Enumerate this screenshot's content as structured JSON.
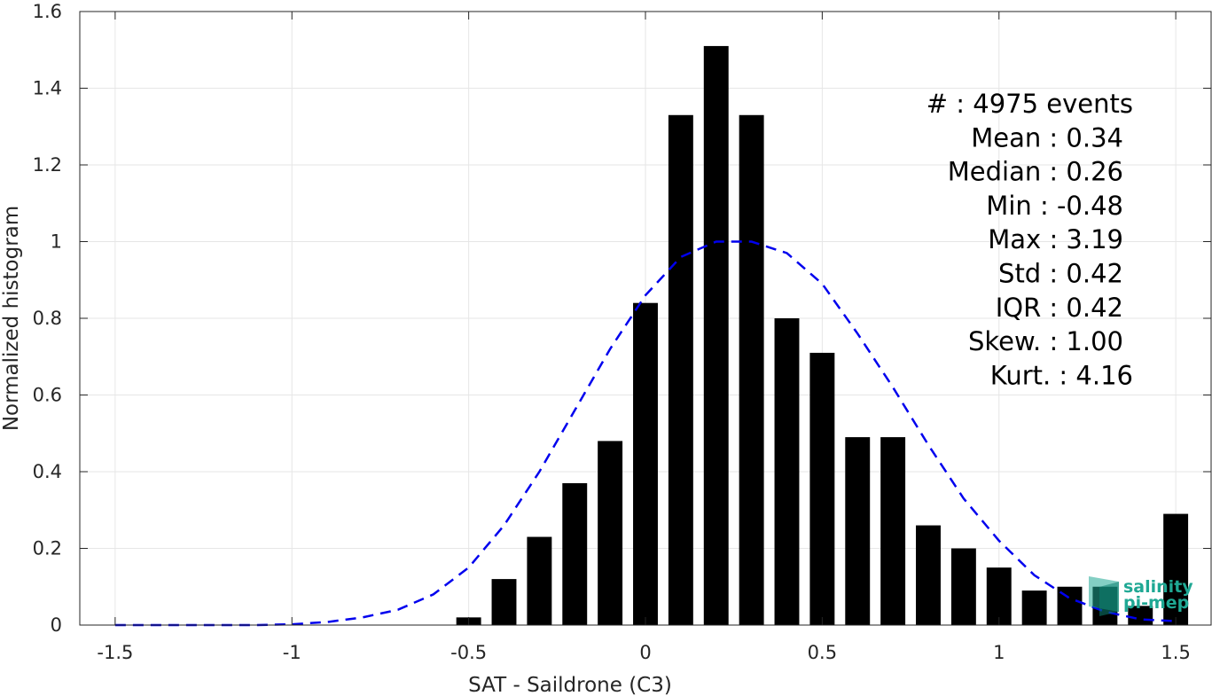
{
  "chart_data": {
    "type": "bar",
    "xlabel": "SAT - Saildrone (C3)",
    "ylabel": "Normalized histogram",
    "xlim": [
      -1.6,
      1.6
    ],
    "ylim": [
      0,
      1.6
    ],
    "grid": true,
    "x_ticks": [
      -1.5,
      -1,
      -0.5,
      0,
      0.5,
      1,
      1.5
    ],
    "x_tick_labels": [
      "-1.5",
      "-1",
      "-0.5",
      "0",
      "0.5",
      "1",
      "1.5"
    ],
    "y_ticks": [
      0,
      0.2,
      0.4,
      0.6,
      0.8,
      1,
      1.2,
      1.4,
      1.6
    ],
    "y_tick_labels": [
      "0",
      "0.2",
      "0.4",
      "0.6",
      "0.8",
      "1",
      "1.2",
      "1.4",
      "1.6"
    ],
    "bar_width": 0.07,
    "bar_color": "#000000",
    "series": [
      {
        "type": "bar",
        "x": [
          -0.5,
          -0.4,
          -0.3,
          -0.2,
          -0.1,
          0.0,
          0.1,
          0.2,
          0.3,
          0.4,
          0.5,
          0.6,
          0.7,
          0.8,
          0.9,
          1.0,
          1.1,
          1.2,
          1.3,
          1.4,
          1.5
        ],
        "values": [
          0.02,
          0.12,
          0.23,
          0.37,
          0.48,
          0.84,
          1.33,
          1.51,
          1.33,
          0.8,
          0.71,
          0.49,
          0.49,
          0.26,
          0.2,
          0.15,
          0.09,
          0.1,
          0.1,
          0.05,
          0.29
        ]
      },
      {
        "type": "line",
        "style": "dashed",
        "color": "#0000ee",
        "x": [
          -1.5,
          -1.4,
          -1.3,
          -1.2,
          -1.1,
          -1.0,
          -0.9,
          -0.8,
          -0.7,
          -0.6,
          -0.5,
          -0.4,
          -0.3,
          -0.2,
          -0.1,
          0.0,
          0.1,
          0.2,
          0.3,
          0.4,
          0.5,
          0.6,
          0.7,
          0.8,
          0.9,
          1.0,
          1.1,
          1.2,
          1.3,
          1.4,
          1.5
        ],
        "values": [
          0.0,
          0.0,
          0.0,
          0.0,
          0.0,
          0.002,
          0.008,
          0.02,
          0.04,
          0.08,
          0.15,
          0.26,
          0.4,
          0.56,
          0.72,
          0.86,
          0.96,
          1.0,
          1.0,
          0.97,
          0.89,
          0.76,
          0.62,
          0.47,
          0.33,
          0.22,
          0.13,
          0.07,
          0.035,
          0.015,
          0.01
        ]
      }
    ],
    "stats": [
      {
        "label": "#",
        "value": ": 4975 events"
      },
      {
        "label": "Mean",
        "value": ": 0.34"
      },
      {
        "label": "Median",
        "value": ": 0.26"
      },
      {
        "label": "Min",
        "value": ": -0.48"
      },
      {
        "label": "Max",
        "value": ": 3.19"
      },
      {
        "label": "Std",
        "value": ": 0.42"
      },
      {
        "label": "IQR",
        "value": ": 0.42"
      },
      {
        "label": "Skew.",
        "value": ": 1.00"
      },
      {
        "label": "Kurt.",
        "value": ": 4.16"
      }
    ],
    "stats_lines": [
      "#  : 4975 events",
      "Mean : 0.34",
      "Median : 0.26",
      "Min : -0.48",
      "Max : 3.19",
      "Std : 0.42",
      "IQR : 0.42",
      "Skew. : 1.00",
      "Kurt. : 4.16"
    ]
  },
  "logo": {
    "line1": "salinity",
    "line2": "pi-mep",
    "color": "#1fa894"
  }
}
